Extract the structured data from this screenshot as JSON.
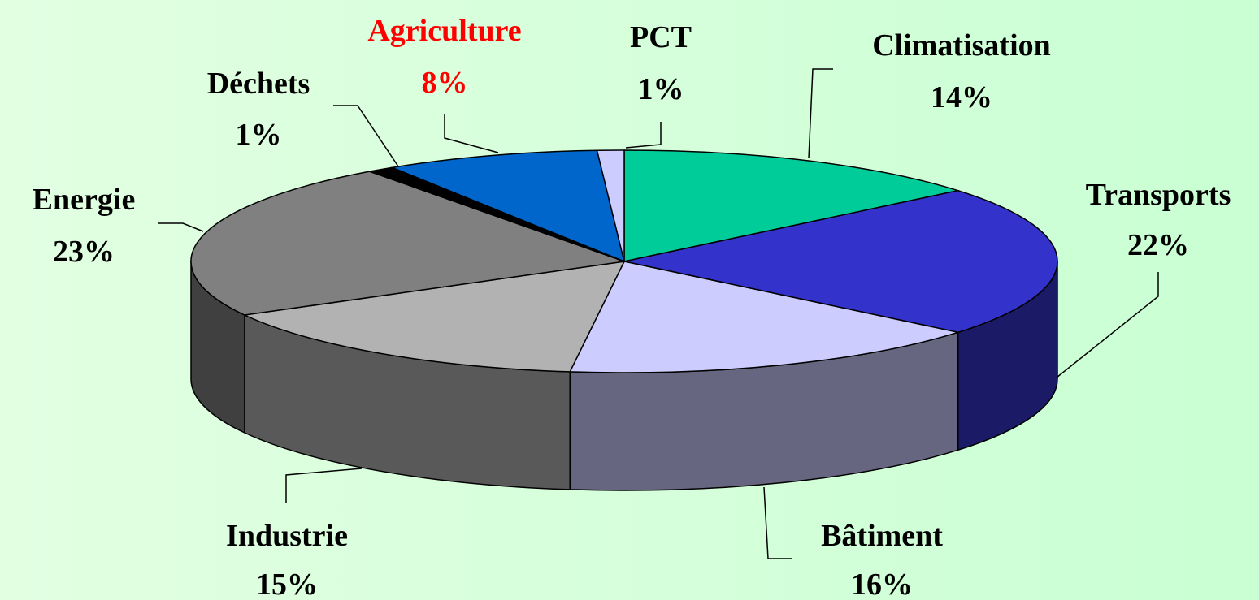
{
  "chart_data": {
    "type": "pie3d",
    "categories": [
      "Climatisation",
      "Transports",
      "Bâtiment",
      "Industrie",
      "Energie",
      "Déchets",
      "Agriculture",
      "PCT"
    ],
    "values": [
      14,
      22,
      16,
      15,
      23,
      1,
      8,
      1
    ],
    "value_labels": [
      "14%",
      "22%",
      "16%",
      "15%",
      "23%",
      "1%",
      "8%",
      "1%"
    ],
    "colors": [
      "#00cc99",
      "#3333cc",
      "#ccccff",
      "#b2b2b2",
      "#808080",
      "#000000",
      "#0066cc",
      "#ccccff"
    ],
    "label_colors": [
      "#000000",
      "#000000",
      "#000000",
      "#000000",
      "#000000",
      "#000000",
      "#ff0000",
      "#000000"
    ],
    "start_angle": 90,
    "direction": "clockwise"
  }
}
